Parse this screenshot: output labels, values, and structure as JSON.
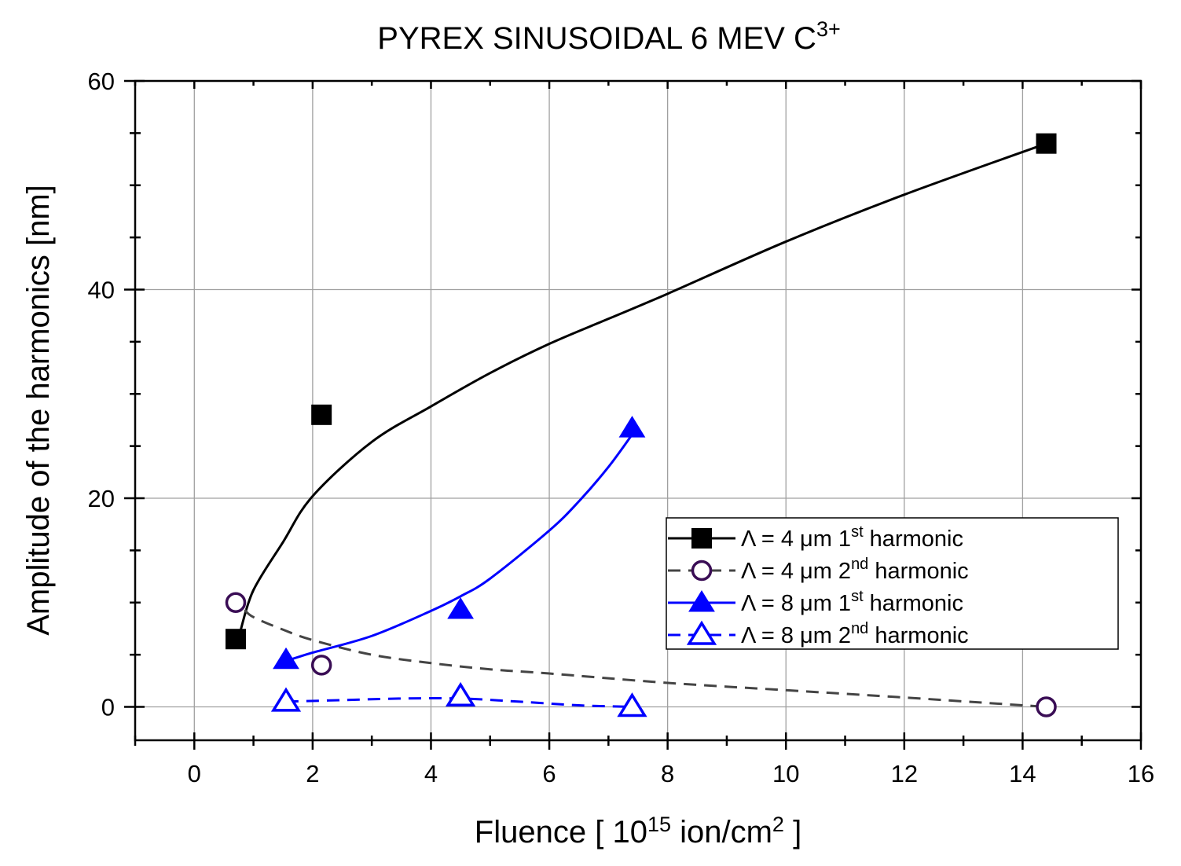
{
  "chart_data": {
    "type": "scatter",
    "title": {
      "main": "PYREX SINUSOIDAL 6 MEV C",
      "sup": "3+"
    },
    "xlabel": {
      "pre": "Fluence [ 10",
      "sup1": "15",
      "mid": " ion/cm",
      "sup2": "2",
      "post": " ]"
    },
    "ylabel": "Amplitude of the harmonics [nm]",
    "xlim": [
      -1,
      16
    ],
    "ylim": [
      -3.2,
      60
    ],
    "xticks": [
      0,
      2,
      4,
      6,
      8,
      10,
      12,
      14,
      16
    ],
    "xtick_labels": [
      "0",
      "2",
      "4",
      "6",
      "8",
      "10",
      "12",
      "14",
      "16"
    ],
    "yticks": [
      0,
      20,
      40,
      60
    ],
    "ytick_labels": [
      "0",
      "20",
      "40",
      "60"
    ],
    "grid": true,
    "legend_position": "lower-right",
    "series": [
      {
        "name": "Λ = 4 μm 1st harmonic",
        "label": {
          "pre": "Λ = 4 μm 1",
          "sup": "st",
          "post": " harmonic"
        },
        "color": "#000000",
        "marker": "filled-square",
        "line": "solid",
        "points": [
          [
            0.7,
            6.5
          ],
          [
            2.15,
            28
          ],
          [
            14.4,
            54
          ]
        ],
        "fit": [
          [
            0.78,
            7.3
          ],
          [
            1.0,
            11.2
          ],
          [
            1.5,
            15.8
          ],
          [
            2.0,
            20.2
          ],
          [
            3.0,
            25.4
          ],
          [
            4.0,
            28.8
          ],
          [
            5.0,
            32.0
          ],
          [
            6.0,
            34.8
          ],
          [
            7.0,
            37.2
          ],
          [
            8.0,
            39.6
          ],
          [
            10.0,
            44.6
          ],
          [
            12.0,
            49.1
          ],
          [
            14.4,
            54.0
          ]
        ]
      },
      {
        "name": "Λ = 4 μm 2nd harmonic",
        "label": {
          "pre": "Λ = 4 μm 2",
          "sup": "nd",
          "post": " harmonic"
        },
        "color": "#444444",
        "marker_color": "#3a0d55",
        "marker": "open-circle",
        "line": "dashed",
        "points": [
          [
            0.7,
            10
          ],
          [
            2.15,
            4
          ],
          [
            14.4,
            0
          ]
        ],
        "fit": [
          [
            0.85,
            9.3
          ],
          [
            1.0,
            8.6
          ],
          [
            1.5,
            7.4
          ],
          [
            2.0,
            6.4
          ],
          [
            3.0,
            5.0
          ],
          [
            4.0,
            4.2
          ],
          [
            5.0,
            3.6
          ],
          [
            6.0,
            3.2
          ],
          [
            8.0,
            2.3
          ],
          [
            10.0,
            1.6
          ],
          [
            12.0,
            0.9
          ],
          [
            14.4,
            0.0
          ]
        ]
      },
      {
        "name": "Λ = 8 μm 1st harmonic",
        "label": {
          "pre": "Λ = 8 μm 1",
          "sup": "st",
          "post": " harmonic"
        },
        "color": "#0000ff",
        "marker": "filled-triangle",
        "line": "solid",
        "points": [
          [
            1.55,
            4.5
          ],
          [
            4.5,
            9.3
          ],
          [
            7.4,
            26.7
          ]
        ],
        "fit": [
          [
            1.55,
            4.4
          ],
          [
            2.0,
            5.2
          ],
          [
            3.0,
            6.8
          ],
          [
            4.0,
            9.2
          ],
          [
            4.5,
            10.6
          ],
          [
            5.0,
            12.3
          ],
          [
            6.0,
            16.9
          ],
          [
            6.5,
            19.7
          ],
          [
            7.0,
            23.0
          ],
          [
            7.4,
            26.1
          ]
        ]
      },
      {
        "name": "Λ = 8 μm 2nd harmonic",
        "label": {
          "pre": "Λ = 8 μm 2",
          "sup": "nd",
          "post": " harmonic"
        },
        "color": "#0000ff",
        "marker": "open-triangle",
        "line": "dashed",
        "points": [
          [
            1.55,
            0.5
          ],
          [
            4.5,
            1.0
          ],
          [
            7.4,
            0
          ]
        ],
        "fit": [
          [
            1.55,
            0.5
          ],
          [
            2.5,
            0.65
          ],
          [
            3.5,
            0.8
          ],
          [
            4.5,
            0.8
          ],
          [
            5.5,
            0.5
          ],
          [
            6.5,
            0.15
          ],
          [
            7.4,
            0.0
          ]
        ]
      }
    ]
  }
}
